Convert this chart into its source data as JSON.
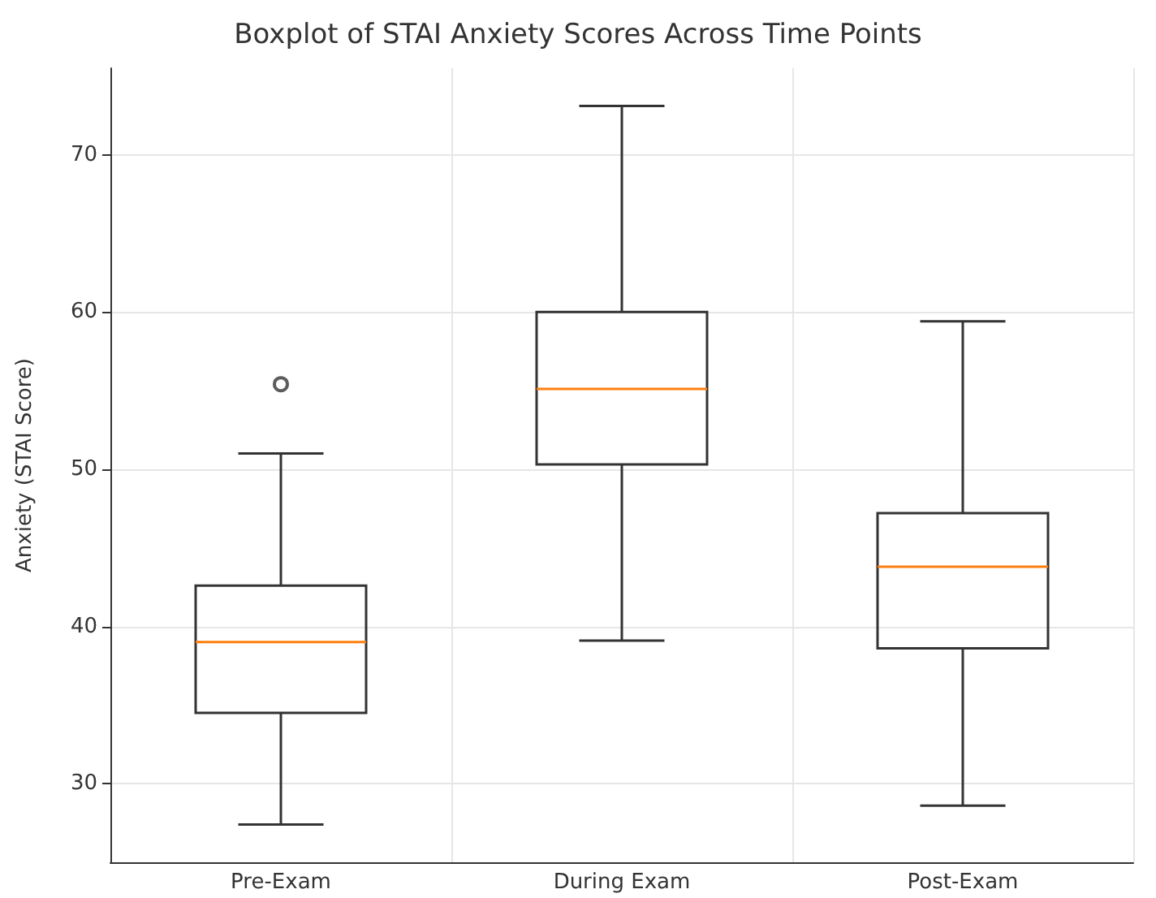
{
  "chart_data": {
    "type": "box",
    "title": "Boxplot of STAI Anxiety Scores Across Time Points",
    "ylabel": "Anxiety (STAI Score)",
    "categories": [
      "Pre-Exam",
      "During Exam",
      "Post-Exam"
    ],
    "boxes": [
      {
        "low": 27.4,
        "q1": 34.5,
        "median": 39.0,
        "q3": 42.6,
        "high": 51.0,
        "outliers": [
          55.4
        ]
      },
      {
        "low": 39.1,
        "q1": 50.3,
        "median": 55.1,
        "q3": 60.0,
        "high": 73.1
      },
      {
        "low": 28.6,
        "q1": 38.6,
        "median": 43.8,
        "q3": 47.2,
        "high": 59.4
      }
    ],
    "ylim": [
      25,
      75.5
    ],
    "yticks": [
      30,
      40,
      50,
      60,
      70
    ],
    "grid": true
  }
}
